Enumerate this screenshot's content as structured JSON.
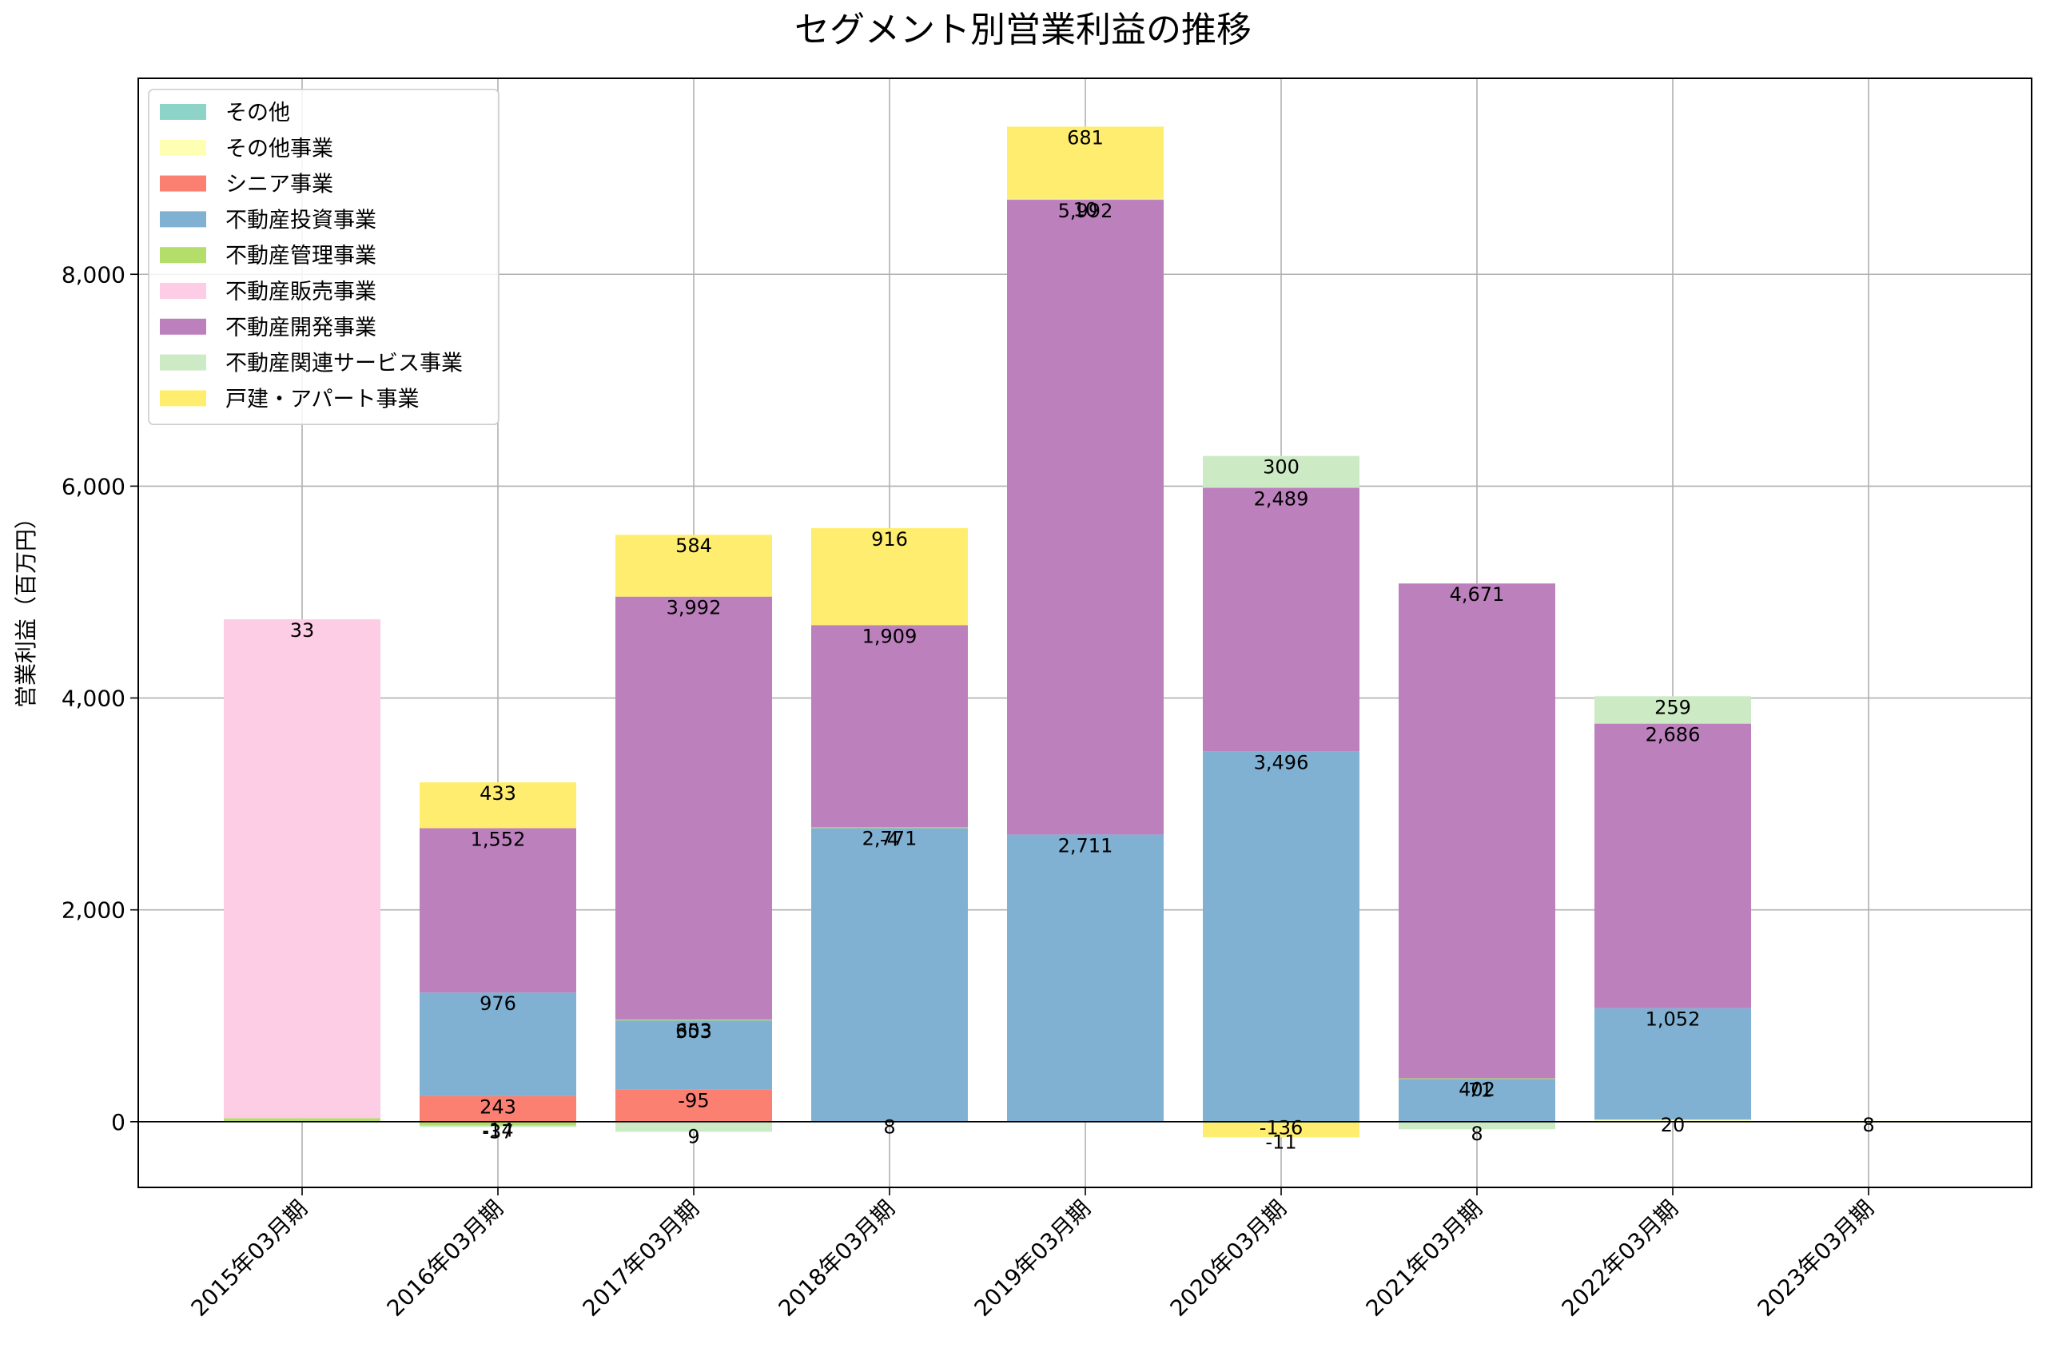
{
  "chart_data": {
    "type": "bar",
    "stacked": true,
    "title": "セグメント別営業利益の推移",
    "xlabel": "",
    "ylabel": "営業利益（百万円）",
    "ylim": [
      -620,
      9850
    ],
    "yticks": [
      0,
      2000,
      4000,
      6000,
      8000
    ],
    "ytick_labels": [
      "0",
      "2,000",
      "4,000",
      "6,000",
      "8,000"
    ],
    "grid": true,
    "legend_position": "top-left",
    "categories": [
      "2015年03月期",
      "2016年03月期",
      "2017年03月期",
      "2018年03月期",
      "2019年03月期",
      "2020年03月期",
      "2021年03月期",
      "2022年03月期",
      "2023年03月期"
    ],
    "series": [
      {
        "name": "その他",
        "color": "#8dd3c7",
        "values": [
          null,
          null,
          null,
          null,
          null,
          null,
          null,
          null,
          null
        ]
      },
      {
        "name": "その他事業",
        "color": "#ffffb3",
        "values": [
          null,
          null,
          null,
          null,
          null,
          null,
          null,
          20,
          8
        ]
      },
      {
        "name": "シニア事業",
        "color": "#fb8072",
        "values": [
          null,
          243,
          303,
          null,
          null,
          null,
          null,
          null,
          null
        ]
      },
      {
        "name": "不動産投資事業",
        "color": "#80b1d3",
        "values": [
          null,
          976,
          653,
          2771,
          2711,
          3496,
          402,
          1052,
          null
        ]
      },
      {
        "name": "不動産管理事業",
        "color": "#b3de69",
        "values": [
          33,
          -37,
          9,
          8,
          null,
          -11,
          8,
          null,
          null
        ]
      },
      {
        "name": "不動産販売事業",
        "color": "#fccde5",
        "values": [
          4710,
          null,
          null,
          null,
          null,
          null,
          null,
          null,
          null
        ]
      },
      {
        "name": "不動産開発事業",
        "color": "#bc80bd",
        "values": [
          null,
          1552,
          3992,
          1909,
          5992,
          2489,
          4671,
          2686,
          null
        ]
      },
      {
        "name": "不動産関連サービス事業",
        "color": "#ccebc5",
        "values": [
          null,
          -14,
          -95,
          -4,
          10,
          300,
          -71,
          259,
          null
        ]
      },
      {
        "name": "戸建・アパート事業",
        "color": "#ffed6f",
        "values": [
          null,
          433,
          584,
          916,
          681,
          -136,
          null,
          null,
          null
        ]
      }
    ],
    "data_labels": [
      [
        "33"
      ],
      [
        "433",
        "1,552",
        "976",
        "243",
        "-14",
        "-37"
      ],
      [
        "584",
        "3,992",
        "653",
        "303",
        "-95",
        "9"
      ],
      [
        "916",
        "1,909",
        "2,771",
        "-4",
        "8"
      ],
      [
        "681",
        "10",
        "5,992",
        "2,711"
      ],
      [
        "300",
        "2,489",
        "3,496",
        "-136",
        "-11"
      ],
      [
        "4,671",
        "402",
        "-71",
        "8"
      ],
      [
        "259",
        "2,686",
        "1,052",
        "20"
      ],
      [
        "8"
      ]
    ]
  }
}
